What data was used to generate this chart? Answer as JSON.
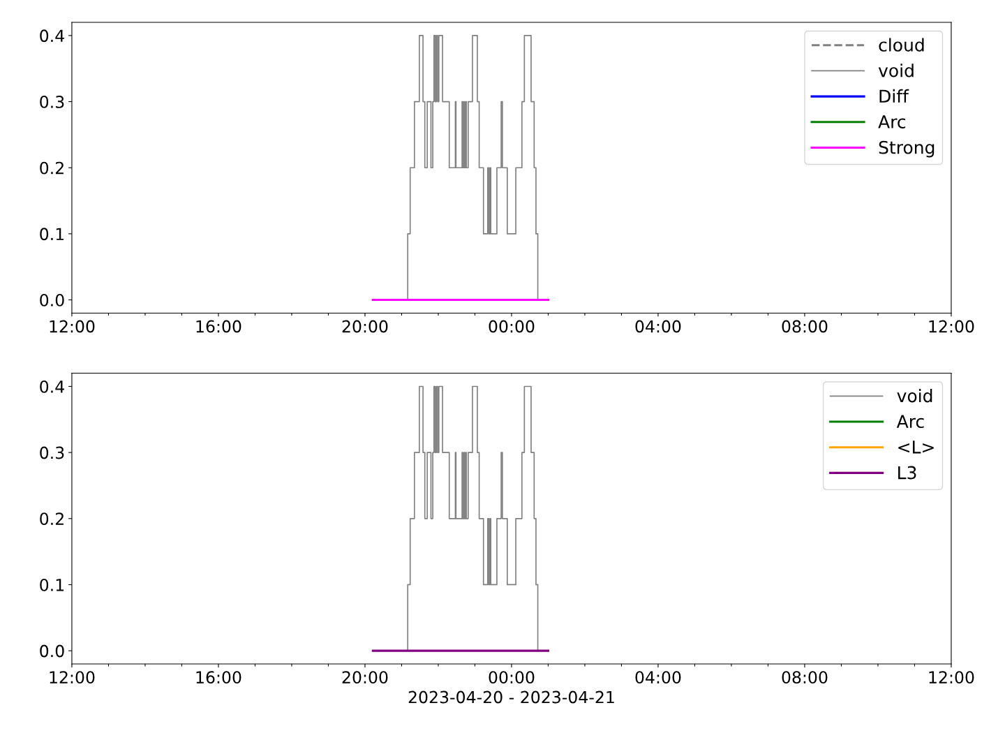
{
  "chart_data": [
    {
      "type": "step",
      "xlim": [
        "2023-04-20T12:00",
        "2023-04-21T12:00"
      ],
      "ylim": [
        -0.02,
        0.42
      ],
      "xticks": [
        {
          "value": "2023-04-20T12:00",
          "label": "12:00"
        },
        {
          "value": "2023-04-20T13:00",
          "label": null
        },
        {
          "value": "2023-04-20T14:00",
          "label": null
        },
        {
          "value": "2023-04-20T15:00",
          "label": null
        },
        {
          "value": "2023-04-20T16:00",
          "label": "16:00"
        },
        {
          "value": "2023-04-20T17:00",
          "label": null
        },
        {
          "value": "2023-04-20T18:00",
          "label": null
        },
        {
          "value": "2023-04-20T19:00",
          "label": null
        },
        {
          "value": "2023-04-20T20:00",
          "label": "20:00"
        },
        {
          "value": "2023-04-20T21:00",
          "label": null
        },
        {
          "value": "2023-04-20T22:00",
          "label": null
        },
        {
          "value": "2023-04-20T23:00",
          "label": null
        },
        {
          "value": "2023-04-21T00:00",
          "label": "00:00"
        },
        {
          "value": "2023-04-21T01:00",
          "label": null
        },
        {
          "value": "2023-04-21T02:00",
          "label": null
        },
        {
          "value": "2023-04-21T03:00",
          "label": null
        },
        {
          "value": "2023-04-21T04:00",
          "label": "04:00"
        },
        {
          "value": "2023-04-21T05:00",
          "label": null
        },
        {
          "value": "2023-04-21T06:00",
          "label": null
        },
        {
          "value": "2023-04-21T07:00",
          "label": null
        },
        {
          "value": "2023-04-21T08:00",
          "label": "08:00"
        },
        {
          "value": "2023-04-21T09:00",
          "label": null
        },
        {
          "value": "2023-04-21T10:00",
          "label": null
        },
        {
          "value": "2023-04-21T11:00",
          "label": null
        },
        {
          "value": "2023-04-21T12:00",
          "label": "12:00"
        }
      ],
      "yticks": [
        {
          "value": 0,
          "label": "0.0"
        },
        {
          "value": 0.1,
          "label": "0.1"
        },
        {
          "value": 0.2,
          "label": "0.2"
        },
        {
          "value": 0.3,
          "label": "0.3"
        },
        {
          "value": 0.4,
          "label": "0.4"
        }
      ],
      "grid": false,
      "legend": "top right",
      "series": [
        {
          "name": "cloud",
          "color": "#808080",
          "line_style": "dashed",
          "type": "line"
        },
        {
          "name": "void",
          "color": "#808080",
          "line_style": "solid",
          "x": [
            "2023-04-20T20:13",
            "2023-04-20T21:10",
            "2023-04-20T21:14",
            "2023-04-20T21:21",
            "2023-04-20T21:29",
            "2023-04-20T21:35",
            "2023-04-20T21:38",
            "2023-04-20T21:42",
            "2023-04-20T21:48",
            "2023-04-20T21:51",
            "2023-04-20T21:53",
            "2023-04-20T21:55",
            "2023-04-20T21:57",
            "2023-04-20T21:59",
            "2023-04-20T22:01",
            "2023-04-20T22:07",
            "2023-04-20T22:18",
            "2023-04-20T22:28",
            "2023-04-20T22:29",
            "2023-04-20T22:39",
            "2023-04-20T22:40",
            "2023-04-20T22:42",
            "2023-04-20T22:43",
            "2023-04-20T22:45",
            "2023-04-20T22:46",
            "2023-04-20T22:49",
            "2023-04-20T22:56",
            "2023-04-20T23:04",
            "2023-04-20T23:07",
            "2023-04-20T23:14",
            "2023-04-20T23:21",
            "2023-04-20T23:23",
            "2023-04-20T23:25",
            "2023-04-20T23:26",
            "2023-04-20T23:36",
            "2023-04-20T23:43",
            "2023-04-20T23:45",
            "2023-04-20T23:53",
            "2023-04-21T00:07",
            "2023-04-21T00:17",
            "2023-04-21T00:21",
            "2023-04-21T00:32",
            "2023-04-21T00:37",
            "2023-04-21T00:40",
            "2023-04-21T00:43",
            "2023-04-21T01:00"
          ],
          "values": [
            0,
            0.1,
            0.2,
            0.3,
            0.4,
            0.3,
            0.2,
            0.3,
            0.2,
            0.3,
            0.4,
            0.3,
            0.4,
            0.3,
            0.4,
            0.3,
            0.2,
            0.3,
            0.2,
            0.3,
            0.2,
            0.3,
            0.2,
            0.3,
            0.2,
            0.3,
            0.4,
            0.3,
            0.2,
            0.1,
            0.2,
            0.1,
            0.2,
            0.1,
            0.2,
            0.3,
            0.2,
            0.1,
            0.2,
            0.3,
            0.4,
            0.3,
            0.2,
            0.1,
            0,
            0
          ]
        },
        {
          "name": "Diff",
          "color": "#0000ff",
          "line_style": "solid",
          "type": "line"
        },
        {
          "name": "Arc",
          "color": "#008000",
          "line_style": "solid",
          "type": "line"
        },
        {
          "name": "Strong",
          "color": "#ff00ff",
          "line_style": "solid",
          "type": "line",
          "x": [
            "2023-04-20T20:13",
            "2023-04-21T01:00"
          ],
          "values": [
            0,
            0
          ]
        }
      ]
    },
    {
      "type": "step",
      "xlim": [
        "2023-04-20T12:00",
        "2023-04-21T12:00"
      ],
      "ylim": [
        -0.02,
        0.42
      ],
      "xlabel": "2023-04-20 - 2023-04-21",
      "xticks": [
        {
          "value": "2023-04-20T12:00",
          "label": "12:00"
        },
        {
          "value": "2023-04-20T13:00",
          "label": null
        },
        {
          "value": "2023-04-20T14:00",
          "label": null
        },
        {
          "value": "2023-04-20T15:00",
          "label": null
        },
        {
          "value": "2023-04-20T16:00",
          "label": "16:00"
        },
        {
          "value": "2023-04-20T17:00",
          "label": null
        },
        {
          "value": "2023-04-20T18:00",
          "label": null
        },
        {
          "value": "2023-04-20T19:00",
          "label": null
        },
        {
          "value": "2023-04-20T20:00",
          "label": "20:00"
        },
        {
          "value": "2023-04-20T21:00",
          "label": null
        },
        {
          "value": "2023-04-20T22:00",
          "label": null
        },
        {
          "value": "2023-04-20T23:00",
          "label": null
        },
        {
          "value": "2023-04-21T00:00",
          "label": "00:00"
        },
        {
          "value": "2023-04-21T01:00",
          "label": null
        },
        {
          "value": "2023-04-21T02:00",
          "label": null
        },
        {
          "value": "2023-04-21T03:00",
          "label": null
        },
        {
          "value": "2023-04-21T04:00",
          "label": "04:00"
        },
        {
          "value": "2023-04-21T05:00",
          "label": null
        },
        {
          "value": "2023-04-21T06:00",
          "label": null
        },
        {
          "value": "2023-04-21T07:00",
          "label": null
        },
        {
          "value": "2023-04-21T08:00",
          "label": "08:00"
        },
        {
          "value": "2023-04-21T09:00",
          "label": null
        },
        {
          "value": "2023-04-21T10:00",
          "label": null
        },
        {
          "value": "2023-04-21T11:00",
          "label": null
        },
        {
          "value": "2023-04-21T12:00",
          "label": "12:00"
        }
      ],
      "yticks": [
        {
          "value": 0,
          "label": "0.0"
        },
        {
          "value": 0.1,
          "label": "0.1"
        },
        {
          "value": 0.2,
          "label": "0.2"
        },
        {
          "value": 0.3,
          "label": "0.3"
        },
        {
          "value": 0.4,
          "label": "0.4"
        }
      ],
      "grid": false,
      "legend": "top right",
      "series": [
        {
          "name": "void",
          "color": "#808080",
          "line_style": "solid",
          "x": [
            "2023-04-20T20:13",
            "2023-04-20T21:10",
            "2023-04-20T21:14",
            "2023-04-20T21:21",
            "2023-04-20T21:29",
            "2023-04-20T21:35",
            "2023-04-20T21:38",
            "2023-04-20T21:42",
            "2023-04-20T21:48",
            "2023-04-20T21:51",
            "2023-04-20T21:53",
            "2023-04-20T21:55",
            "2023-04-20T21:57",
            "2023-04-20T21:59",
            "2023-04-20T22:01",
            "2023-04-20T22:07",
            "2023-04-20T22:18",
            "2023-04-20T22:28",
            "2023-04-20T22:29",
            "2023-04-20T22:39",
            "2023-04-20T22:40",
            "2023-04-20T22:42",
            "2023-04-20T22:43",
            "2023-04-20T22:45",
            "2023-04-20T22:46",
            "2023-04-20T22:49",
            "2023-04-20T22:56",
            "2023-04-20T23:04",
            "2023-04-20T23:07",
            "2023-04-20T23:14",
            "2023-04-20T23:21",
            "2023-04-20T23:23",
            "2023-04-20T23:25",
            "2023-04-20T23:26",
            "2023-04-20T23:36",
            "2023-04-20T23:43",
            "2023-04-20T23:45",
            "2023-04-20T23:53",
            "2023-04-21T00:07",
            "2023-04-21T00:17",
            "2023-04-21T00:21",
            "2023-04-21T00:32",
            "2023-04-21T00:37",
            "2023-04-21T00:40",
            "2023-04-21T00:43",
            "2023-04-21T01:00"
          ],
          "values": [
            0,
            0.1,
            0.2,
            0.3,
            0.4,
            0.3,
            0.2,
            0.3,
            0.2,
            0.3,
            0.4,
            0.3,
            0.4,
            0.3,
            0.4,
            0.3,
            0.2,
            0.3,
            0.2,
            0.3,
            0.2,
            0.3,
            0.2,
            0.3,
            0.2,
            0.3,
            0.4,
            0.3,
            0.2,
            0.1,
            0.2,
            0.1,
            0.2,
            0.1,
            0.2,
            0.3,
            0.2,
            0.1,
            0.2,
            0.3,
            0.4,
            0.3,
            0.2,
            0.1,
            0,
            0
          ]
        },
        {
          "name": "Arc",
          "color": "#008000",
          "line_style": "solid",
          "type": "line"
        },
        {
          "name": "<L>",
          "color": "#ffa500",
          "line_style": "solid",
          "type": "line"
        },
        {
          "name": "L3",
          "color": "#800080",
          "line_style": "solid",
          "type": "line",
          "x": [
            "2023-04-20T20:13",
            "2023-04-21T01:00"
          ],
          "values": [
            0,
            0
          ]
        }
      ]
    }
  ]
}
